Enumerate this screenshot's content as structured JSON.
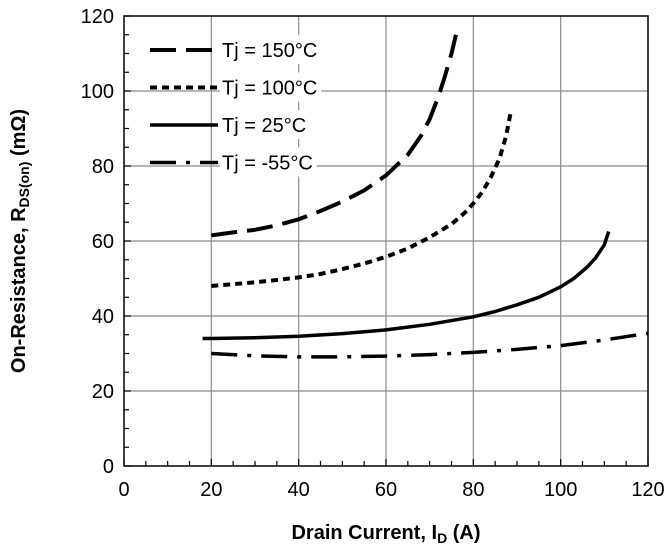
{
  "chart_data": {
    "type": "line",
    "title": "",
    "xlabel": "Drain Current, I",
    "xlabel_sub": "D",
    "xlabel_unit": " (A)",
    "ylabel": "On-Resistance, R",
    "ylabel_sub": "DS(on)",
    "ylabel_unit": " (mΩ)",
    "xlim": [
      0,
      120
    ],
    "ylim": [
      0,
      120
    ],
    "x_ticks": [
      0,
      20,
      40,
      60,
      80,
      100,
      120
    ],
    "y_ticks": [
      0,
      20,
      40,
      60,
      80,
      100,
      120
    ],
    "x_tick_labels": [
      "0",
      "20",
      "40",
      "60",
      "80",
      "100",
      "120"
    ],
    "y_tick_labels": [
      "0",
      "20",
      "40",
      "60",
      "80",
      "100",
      "120"
    ],
    "grid": true,
    "legend_position": "top-left",
    "series": [
      {
        "name": "Tj = 150°C",
        "style": "long-dash",
        "x": [
          20,
          25,
          30,
          35,
          40,
          45,
          50,
          55,
          60,
          65,
          68,
          70,
          72,
          73.5,
          75,
          76
        ],
        "y": [
          61.5,
          62.3,
          63,
          64.2,
          65.8,
          68,
          70.5,
          73.5,
          77.5,
          83,
          88,
          92.5,
          98.5,
          104,
          110,
          115
        ]
      },
      {
        "name": "Tj = 100°C",
        "style": "short-dash",
        "x": [
          20,
          25,
          30,
          35,
          40,
          45,
          50,
          55,
          60,
          65,
          70,
          75,
          78,
          80,
          82,
          84,
          86,
          87.5,
          88.5
        ],
        "y": [
          48,
          48.5,
          49,
          49.6,
          50.3,
          51.2,
          52.5,
          54,
          55.8,
          58,
          61,
          64.5,
          67.5,
          70,
          73,
          77,
          82,
          88,
          94
        ]
      },
      {
        "name": "Tj = 25°C",
        "style": "solid",
        "x": [
          18,
          20,
          30,
          40,
          50,
          60,
          70,
          80,
          85,
          90,
          95,
          100,
          103,
          106,
          108,
          110,
          111
        ],
        "y": [
          34,
          34,
          34.2,
          34.6,
          35.3,
          36.3,
          37.8,
          39.8,
          41.2,
          43,
          45,
          47.8,
          50,
          53,
          55.5,
          59,
          62.5
        ]
      },
      {
        "name": "Tj = -55°C",
        "style": "dash-dot",
        "x": [
          20,
          30,
          40,
          50,
          60,
          70,
          80,
          90,
          100,
          110,
          120
        ],
        "y": [
          30,
          29.4,
          29.1,
          29.1,
          29.3,
          29.7,
          30.3,
          31.1,
          32.1,
          33.6,
          35.4
        ]
      }
    ]
  }
}
